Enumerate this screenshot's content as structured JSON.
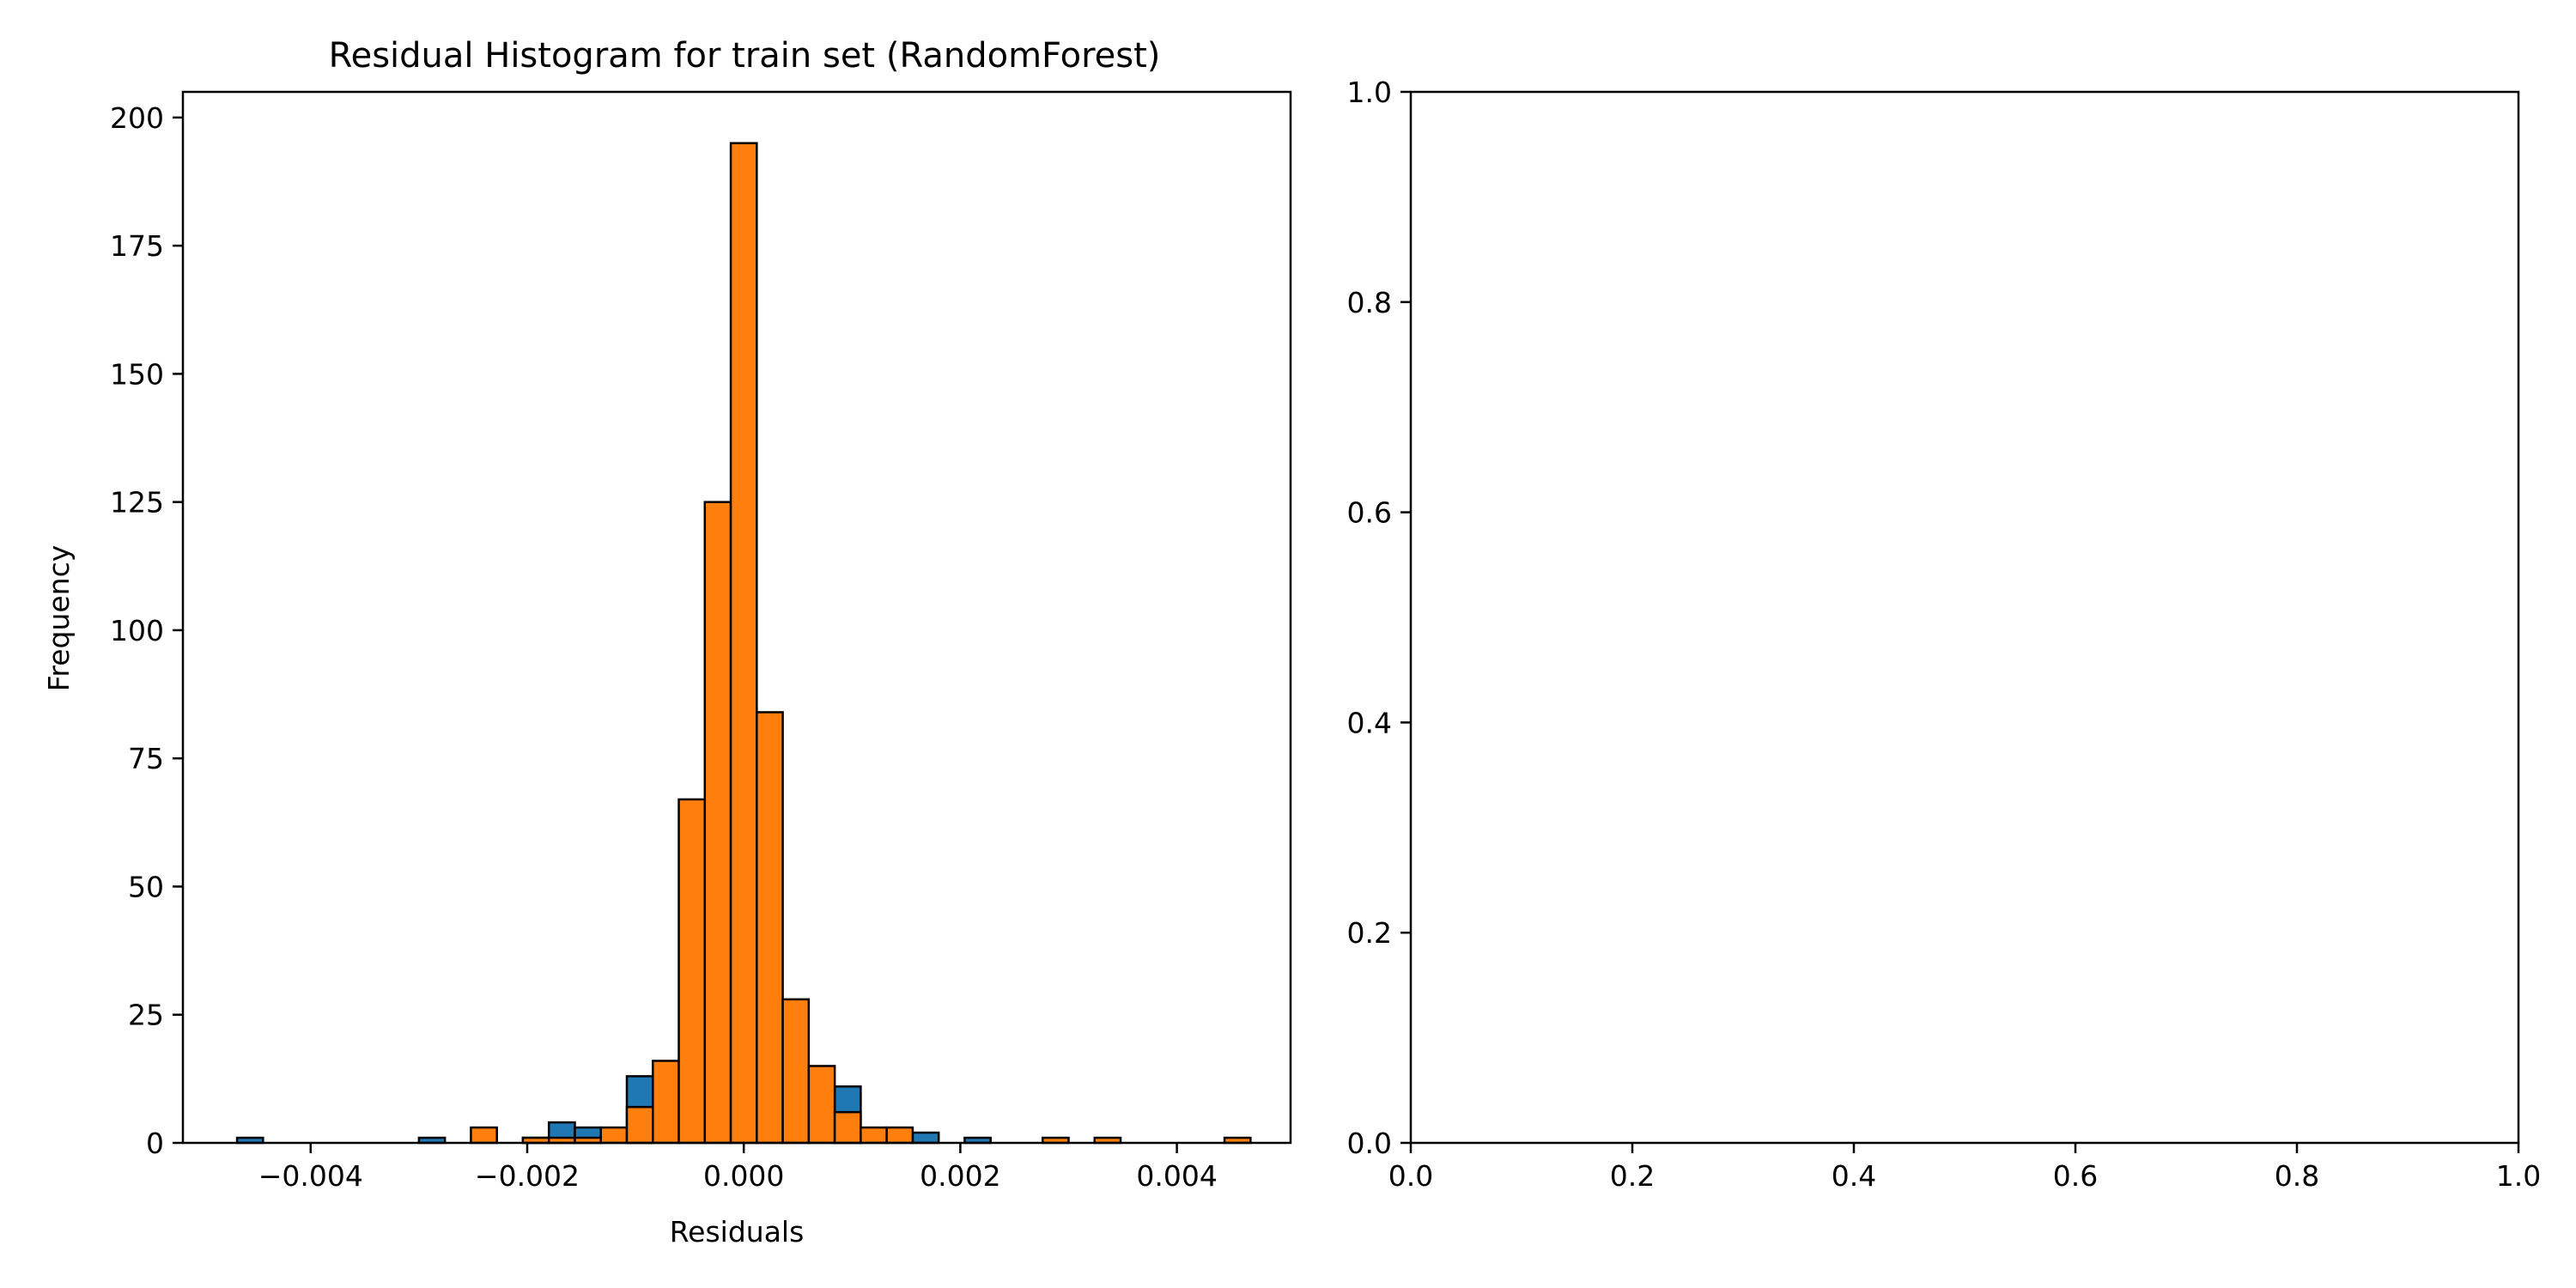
{
  "chart_data": [
    {
      "type": "bar",
      "title": "Residual Histogram for train set (RandomForest)",
      "xlabel": "Residuals",
      "ylabel": "Frequency",
      "xlim": [
        -0.00518,
        0.00505
      ],
      "ylim": [
        0,
        205
      ],
      "x_ticks": [
        {
          "value": -0.004,
          "label": "−0.004"
        },
        {
          "value": -0.002,
          "label": "−0.002"
        },
        {
          "value": 0.0,
          "label": "0.000"
        },
        {
          "value": 0.002,
          "label": "0.002"
        },
        {
          "value": 0.004,
          "label": "0.004"
        }
      ],
      "y_ticks": [
        {
          "value": 0,
          "label": "0"
        },
        {
          "value": 25,
          "label": "25"
        },
        {
          "value": 50,
          "label": "50"
        },
        {
          "value": 75,
          "label": "75"
        },
        {
          "value": 100,
          "label": "100"
        },
        {
          "value": 125,
          "label": "125"
        },
        {
          "value": 150,
          "label": "150"
        },
        {
          "value": 175,
          "label": "175"
        },
        {
          "value": 200,
          "label": "200"
        }
      ],
      "grid": false,
      "edge_color": "#000000",
      "series": [
        {
          "color": "#1f77b4",
          "bin_width": 0.00024,
          "bin_starts": [
            -0.00468,
            -0.00444,
            -0.0042,
            -0.00396,
            -0.00372,
            -0.00348,
            -0.00324,
            -0.003,
            -0.00276,
            -0.00252,
            -0.00228,
            -0.00204,
            -0.0018,
            -0.00156,
            -0.00132,
            -0.00108,
            -0.00084,
            -0.0006,
            -0.00036,
            -0.00012,
            0.00012,
            0.00036,
            0.0006,
            0.00084,
            0.00108,
            0.00132,
            0.00156,
            0.0018,
            0.00204
          ],
          "values": [
            1,
            0,
            0,
            0,
            0,
            0,
            0,
            1,
            0,
            0,
            0,
            1,
            4,
            3,
            0,
            13,
            0,
            0,
            0,
            0,
            0,
            0,
            0,
            11,
            0,
            0,
            2,
            0,
            1
          ]
        },
        {
          "color": "#ff7f0e",
          "bin_width": 0.00024,
          "bin_starts": [
            -0.00252,
            -0.00228,
            -0.00204,
            -0.0018,
            -0.00156,
            -0.00132,
            -0.00108,
            -0.00084,
            -0.0006,
            -0.00036,
            -0.00012,
            0.00012,
            0.00036,
            0.0006,
            0.00084,
            0.00108,
            0.00132,
            0.00156,
            0.0018,
            0.00204,
            0.00228,
            0.00252,
            0.00276,
            0.003,
            0.00324,
            0.00348,
            0.00372,
            0.00396,
            0.0042,
            0.00444
          ],
          "values": [
            3,
            0,
            1,
            1,
            1,
            3,
            7,
            16,
            67,
            125,
            195,
            84,
            28,
            15,
            6,
            3,
            3,
            0,
            0,
            0,
            0,
            0,
            1,
            0,
            1,
            0,
            0,
            0,
            0,
            1
          ]
        }
      ]
    },
    {
      "type": "scatter",
      "title": "",
      "xlabel": "",
      "ylabel": "",
      "xlim": [
        0.0,
        1.0
      ],
      "ylim": [
        0.0,
        1.0
      ],
      "x_ticks": [
        {
          "value": 0.0,
          "label": "0.0"
        },
        {
          "value": 0.2,
          "label": "0.2"
        },
        {
          "value": 0.4,
          "label": "0.4"
        },
        {
          "value": 0.6,
          "label": "0.6"
        },
        {
          "value": 0.8,
          "label": "0.8"
        },
        {
          "value": 1.0,
          "label": "1.0"
        }
      ],
      "y_ticks": [
        {
          "value": 0.0,
          "label": "0.0"
        },
        {
          "value": 0.2,
          "label": "0.2"
        },
        {
          "value": 0.4,
          "label": "0.4"
        },
        {
          "value": 0.6,
          "label": "0.6"
        },
        {
          "value": 0.8,
          "label": "0.8"
        },
        {
          "value": 1.0,
          "label": "1.0"
        }
      ],
      "grid": false,
      "series": []
    }
  ]
}
